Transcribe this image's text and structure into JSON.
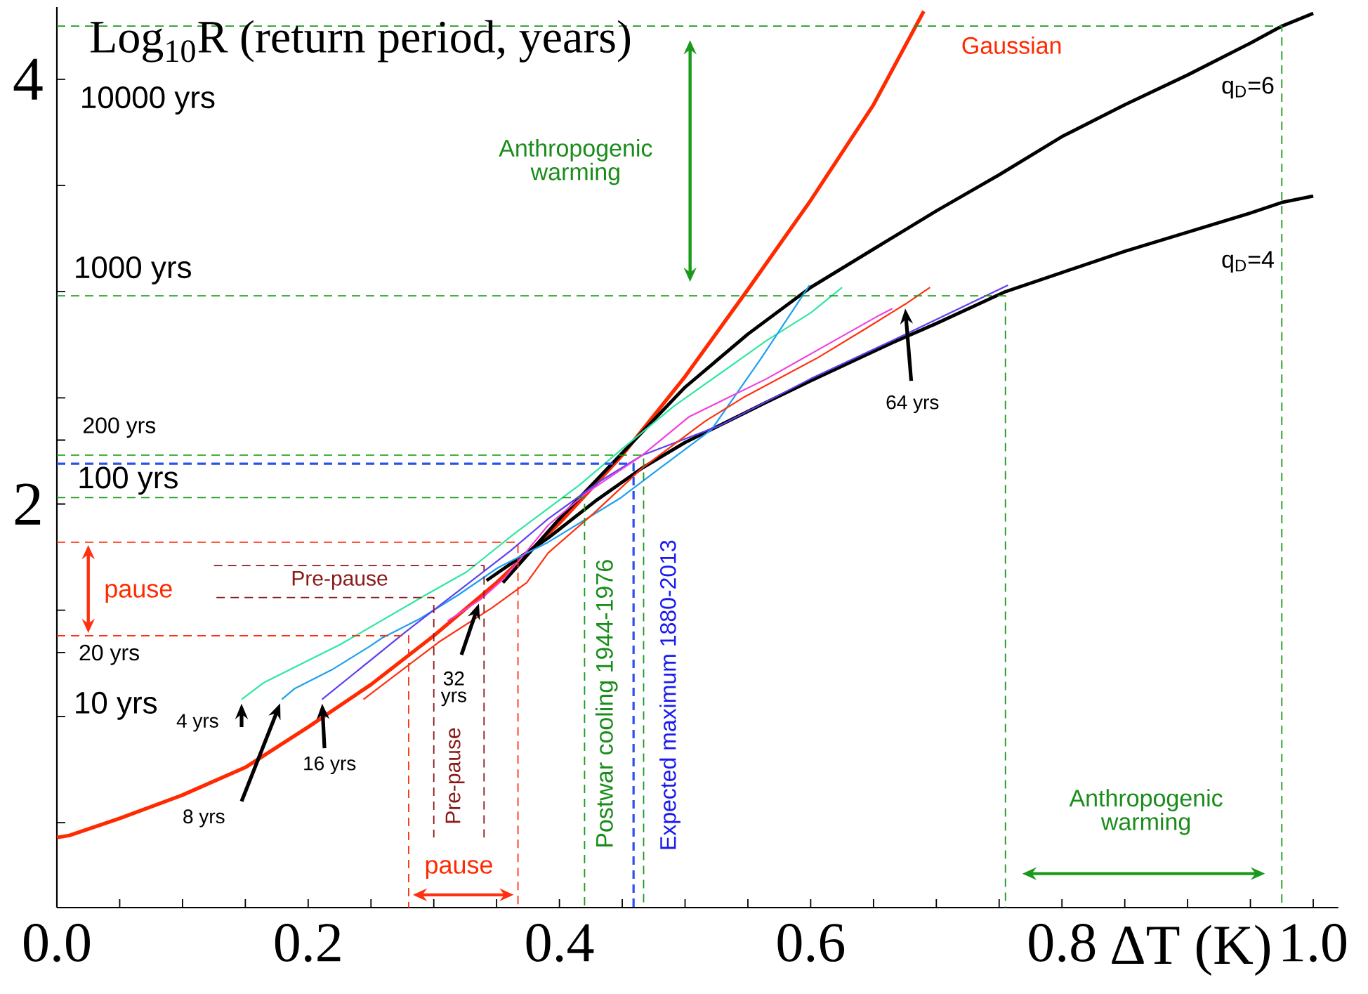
{
  "chart_data": {
    "type": "line",
    "xlabel": "ΔT (K)",
    "ylabel": "Log$_{10}$R (return period, years)",
    "xlim": [
      0,
      1.02
    ],
    "ylim": [
      0.1,
      4.34
    ],
    "xticks": [
      {
        "value": 0,
        "label": "0.0"
      },
      {
        "value": 0.05,
        "label": null
      },
      {
        "value": 0.1,
        "label": null
      },
      {
        "value": 0.15,
        "label": null
      },
      0.2,
      {
        "value": 0.25,
        "label": null
      },
      {
        "value": 0.3,
        "label": null
      },
      {
        "value": 0.35,
        "label": null
      },
      0.4,
      {
        "value": 0.45,
        "label": null
      },
      {
        "value": 0.5,
        "label": null
      },
      {
        "value": 0.55,
        "label": null
      },
      0.6,
      {
        "value": 0.65,
        "label": null
      },
      {
        "value": 0.7,
        "label": null
      },
      {
        "value": 0.75,
        "label": null
      },
      0.8,
      {
        "value": 0.85,
        "label": null
      },
      {
        "value": 0.9,
        "label": null
      },
      {
        "value": 0.95,
        "label": null
      },
      {
        "value": 1,
        "label": "1.0"
      }
    ],
    "yticks": [
      {
        "value": 0.5,
        "label": null
      },
      {
        "value": 1,
        "label": null
      },
      {
        "value": 1.301,
        "label": null
      },
      {
        "value": 1.5,
        "label": null
      },
      2,
      {
        "value": 2.301,
        "label": null
      },
      {
        "value": 2.5,
        "label": null
      },
      {
        "value": 3,
        "label": null
      },
      {
        "value": 3.5,
        "label": null
      },
      4
    ],
    "marker": "none",
    "line_style": "solid",
    "series": [
      {
        "name": "Gaussian",
        "color": "#ff2a00",
        "x": [
          0,
          0.01,
          0.05,
          0.1,
          0.15,
          0.2,
          0.25,
          0.3,
          0.35,
          0.4,
          0.45,
          0.5,
          0.55,
          0.6,
          0.65,
          0.69
        ],
        "values": [
          0.43,
          0.44,
          0.52,
          0.63,
          0.76,
          0.95,
          1.15,
          1.38,
          1.63,
          1.91,
          2.23,
          2.6,
          3.01,
          3.43,
          3.88,
          4.32
        ]
      },
      {
        "name": "q$_{D}$=6",
        "color": "#000000",
        "x": [
          0.355,
          0.4,
          0.45,
          0.5,
          0.55,
          0.6,
          0.65,
          0.7,
          0.75,
          0.8,
          0.85,
          0.9,
          0.95,
          0.975,
          1.0
        ],
        "values": [
          1.63,
          1.93,
          2.24,
          2.55,
          2.8,
          3.02,
          3.2,
          3.38,
          3.55,
          3.73,
          3.88,
          4.02,
          4.17,
          4.25,
          4.31
        ]
      },
      {
        "name": "q$_{D}$=4",
        "color": "#000000",
        "x": [
          0.342,
          0.391,
          0.43,
          0.466,
          0.5,
          0.565,
          0.6,
          0.665,
          0.7,
          0.755,
          0.8,
          0.85,
          0.9,
          0.95,
          0.975,
          1.0
        ],
        "values": [
          1.64,
          1.84,
          2.02,
          2.17,
          2.29,
          2.48,
          2.58,
          2.76,
          2.85,
          3.0,
          3.09,
          3.19,
          3.28,
          3.37,
          3.42,
          3.45
        ]
      },
      {
        "color": "#2ee8a0",
        "x": [
          0.147,
          0.165,
          0.226,
          0.293,
          0.326,
          0.364,
          0.416,
          0.45,
          0.491,
          0.565,
          0.6,
          0.625
        ],
        "values": [
          1.08,
          1.16,
          1.34,
          1.57,
          1.68,
          1.86,
          2.09,
          2.26,
          2.46,
          2.77,
          2.9,
          3.02
        ]
      },
      {
        "color": "#1ea0f0",
        "x": [
          0.179,
          0.189,
          0.219,
          0.249,
          0.259,
          0.289,
          0.319,
          0.351,
          0.391,
          0.449,
          0.478,
          0.521,
          0.561,
          0.599
        ],
        "values": [
          1.08,
          1.13,
          1.22,
          1.33,
          1.37,
          1.46,
          1.57,
          1.7,
          1.82,
          2.03,
          2.16,
          2.35,
          2.69,
          3.03
        ]
      },
      {
        "color": "#6040f0",
        "x": [
          0.211,
          0.278,
          0.361,
          0.391,
          0.433,
          0.466,
          0.528,
          0.6,
          0.665,
          0.757
        ],
        "values": [
          1.08,
          1.4,
          1.78,
          1.93,
          2.11,
          2.23,
          2.37,
          2.59,
          2.77,
          3.03
        ]
      },
      {
        "color": "#f040e0",
        "x": [
          0.311,
          0.337,
          0.356,
          0.391,
          0.421,
          0.466,
          0.503,
          0.565,
          0.625,
          0.655,
          0.665
        ],
        "values": [
          1.45,
          1.55,
          1.65,
          1.9,
          2.05,
          2.23,
          2.41,
          2.59,
          2.79,
          2.89,
          2.92
        ]
      },
      {
        "color": "#ff3010",
        "x": [
          0.244,
          0.264,
          0.304,
          0.346,
          0.374,
          0.391,
          0.428,
          0.466,
          0.516,
          0.546,
          0.606,
          0.645,
          0.675,
          0.695
        ],
        "values": [
          1.08,
          1.17,
          1.35,
          1.51,
          1.63,
          1.77,
          1.96,
          2.17,
          2.39,
          2.5,
          2.69,
          2.83,
          2.94,
          3.02
        ]
      },
      {
        "color": "#1a9a1a",
        "line_style": "dashed",
        "x": [
          0,
          0.975,
          0.975
        ],
        "values": [
          4.25,
          4.25,
          0.1
        ]
      },
      {
        "color": "#1a9a1a",
        "line_style": "dashed",
        "x": [
          0,
          0.755,
          0.755
        ],
        "values": [
          2.98,
          2.98,
          0.1
        ]
      },
      {
        "color": "#1a9a1a",
        "line_style": "dashed",
        "x": [
          0,
          0.467,
          0.467
        ],
        "values": [
          2.23,
          2.23,
          0.1
        ]
      },
      {
        "color": "#1a9a1a",
        "line_style": "dashed",
        "x": [
          0,
          0.42,
          0.42
        ],
        "values": [
          2.03,
          2.03,
          0.1
        ]
      },
      {
        "color": "#2a50f0",
        "line_style": "dashed",
        "x": [
          0,
          0.459,
          0.459
        ],
        "values": [
          2.19,
          2.19,
          0.1
        ]
      },
      {
        "color": "#ff3010",
        "line_style": "dashed",
        "x": [
          0,
          0.367,
          0.367
        ],
        "values": [
          1.82,
          1.82,
          0.1
        ]
      },
      {
        "color": "#ff3010",
        "line_style": "dashed",
        "x": [
          0,
          0.28,
          0.28
        ],
        "values": [
          1.38,
          1.38,
          0.1
        ]
      },
      {
        "color": "#8b1a1a",
        "line_style": "dashed",
        "x": [
          0.125,
          0.34,
          0.34
        ],
        "values": [
          1.71,
          1.71,
          0.43
        ]
      },
      {
        "color": "#8b1a1a",
        "line_style": "dashed",
        "x": [
          0.127,
          0.3,
          0.3
        ],
        "values": [
          1.56,
          1.56,
          0.43
        ]
      }
    ],
    "annotations": [
      "10000 yrs",
      "1000 yrs",
      "200 yrs",
      "100 yrs",
      "20 yrs",
      "10 yrs",
      "Anthropogenic warming",
      "Anthropogenic warming",
      "pause",
      "pause",
      "Pre-pause",
      "Pre-pause",
      "Postwar cooling 1944-1976",
      "Expected maximum 1880-2013",
      {
        "text": "4 yrs",
        "x": 0.147,
        "y": 1.08
      },
      "8 yrs",
      {
        "text": "16 yrs",
        "x": 0.211,
        "y": 1.08
      },
      "32 yrs",
      "64 yrs"
    ]
  }
}
